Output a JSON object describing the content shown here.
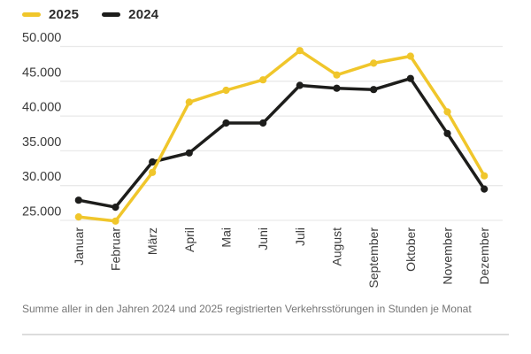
{
  "legend": {
    "items": [
      {
        "label": "2025",
        "color": "#F0C62B"
      },
      {
        "label": "2024",
        "color": "#1D1D1B"
      }
    ]
  },
  "caption": "Summe aller in den Jahren 2024 und 2025 registrierten Verkehrsstörungen in Stunden je Monat",
  "colors": {
    "accent_2025": "#F0C62B",
    "accent_2024": "#1D1D1B",
    "grid": "#E9E9E9",
    "axis_text": "#3B3B3B",
    "caption_text": "#767676",
    "divider": "#DCDCDC",
    "background": "#FFFFFF"
  },
  "chart_data": {
    "type": "line",
    "title": "",
    "xlabel": "",
    "ylabel": "",
    "categories": [
      "Januar",
      "Februar",
      "März",
      "April",
      "Mai",
      "Juni",
      "Juli",
      "August",
      "September",
      "Oktober",
      "November",
      "Dezember"
    ],
    "series": [
      {
        "name": "2025",
        "color": "#F0C62B",
        "values": [
          25500,
          24900,
          31900,
          42000,
          43700,
          45200,
          49400,
          45900,
          47600,
          48600,
          40600,
          31400
        ]
      },
      {
        "name": "2024",
        "color": "#1D1D1B",
        "values": [
          27900,
          26900,
          33400,
          34700,
          39000,
          39000,
          44400,
          44000,
          43800,
          45400,
          37500,
          29500
        ]
      }
    ],
    "ylim": [
      24000,
      51000
    ],
    "yticks": [
      {
        "value": 50000,
        "label": "50.000"
      },
      {
        "value": 45000,
        "label": "45.000"
      },
      {
        "value": 40000,
        "label": "40.000"
      },
      {
        "value": 35000,
        "label": "35.000"
      },
      {
        "value": 30000,
        "label": "30.000"
      },
      {
        "value": 25000,
        "label": "25.000"
      }
    ],
    "grid": true,
    "legend_position": "top-left",
    "x_labels_rotated": true
  }
}
